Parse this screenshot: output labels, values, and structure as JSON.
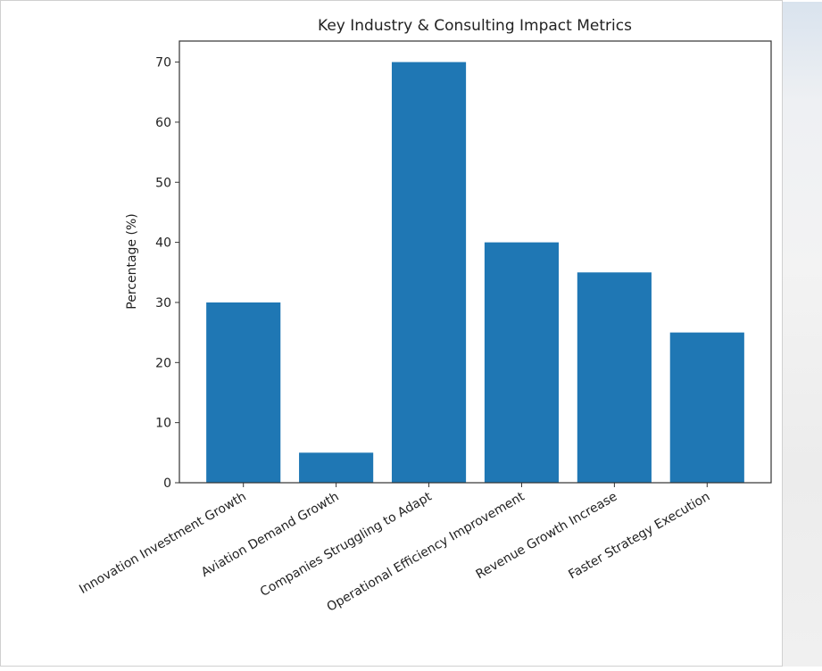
{
  "chart_data": {
    "type": "bar",
    "title": "Key Industry & Consulting Impact Metrics",
    "xlabel": "",
    "ylabel": "Percentage (%)",
    "categories": [
      "Innovation Investment Growth",
      "Aviation Demand Growth",
      "Companies Struggling to Adapt",
      "Operational Efficiency Improvement",
      "Revenue Growth Increase",
      "Faster Strategy Execution"
    ],
    "values": [
      30,
      5,
      70,
      40,
      35,
      25
    ],
    "ylim": [
      0,
      73.5
    ],
    "yticks": [
      0,
      10,
      20,
      30,
      40,
      50,
      60,
      70
    ],
    "grid": false,
    "bar_color": "#1f77b4"
  }
}
